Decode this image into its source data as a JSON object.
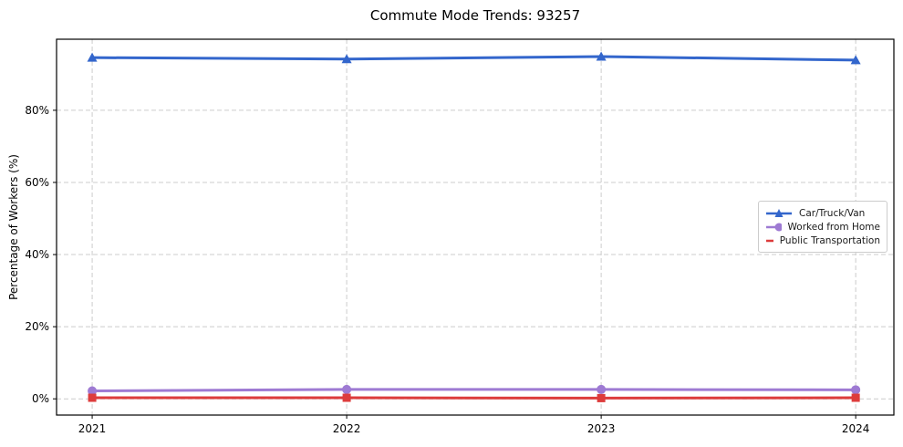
{
  "title": "Commute Mode Trends: 93257",
  "colors": {
    "car": "#3366cc",
    "home": "#9e7ad3",
    "transit": "#dd3c3c",
    "grid": "#cccccc",
    "spine": "#000000",
    "background": "#ffffff"
  },
  "chart_data": {
    "type": "line",
    "title": "Commute Mode Trends: 93257",
    "xlabel": "",
    "ylabel": "Percentage of Workers (%)",
    "x": [
      2021,
      2022,
      2023,
      2024
    ],
    "categories": [
      "2021",
      "2022",
      "2023",
      "2024"
    ],
    "series": [
      {
        "name": "Car/Truck/Van",
        "values": [
          94.6,
          94.2,
          94.9,
          93.9
        ],
        "color": "#3366cc",
        "marker": "triangle"
      },
      {
        "name": "Worked from Home",
        "values": [
          2.2,
          2.6,
          2.6,
          2.5
        ],
        "color": "#9e7ad3",
        "marker": "circle"
      },
      {
        "name": "Public Transportation",
        "values": [
          0.3,
          0.3,
          0.2,
          0.3
        ],
        "color": "#dd3c3c",
        "marker": "square"
      }
    ],
    "yticks": [
      0,
      20,
      40,
      60,
      80
    ],
    "ytick_labels": [
      "0%",
      "20%",
      "40%",
      "60%",
      "80%"
    ],
    "xticks": [
      2021,
      2022,
      2023,
      2024
    ],
    "xtick_labels": [
      "2021",
      "2022",
      "2023",
      "2024"
    ],
    "ylim": [
      -4.5,
      99.7
    ],
    "xlim": [
      2020.86,
      2024.15
    ],
    "grid": true,
    "grid_style": "dashed",
    "legend_position": "center-right"
  }
}
